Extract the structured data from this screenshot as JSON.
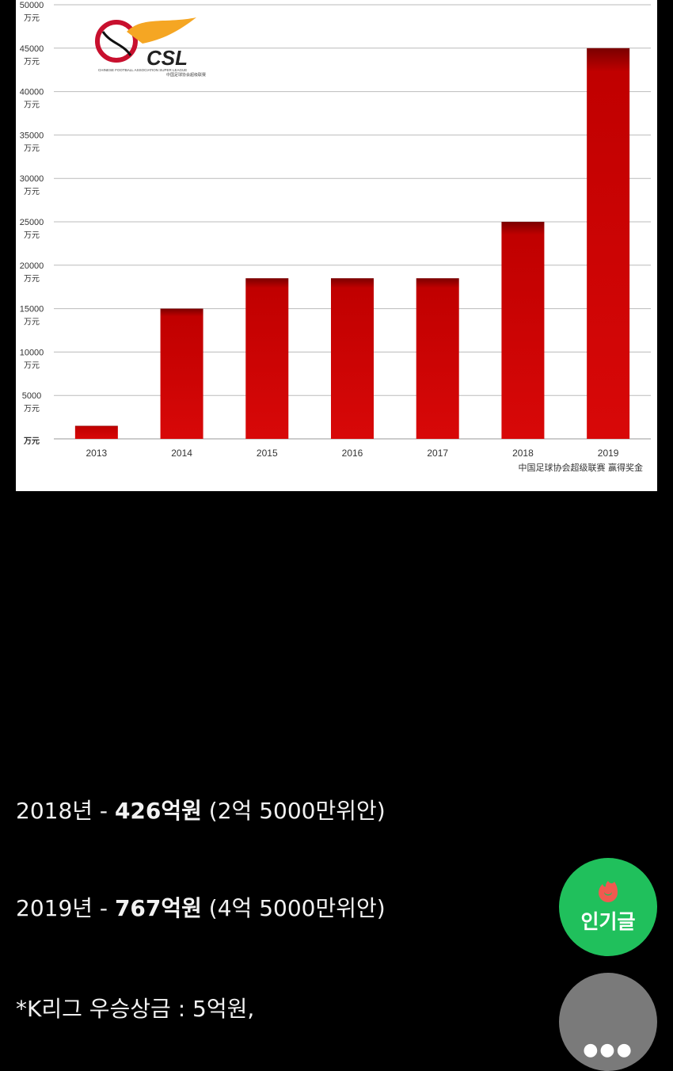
{
  "chart_data": {
    "type": "bar",
    "categories": [
      "2013",
      "2014",
      "2015",
      "2016",
      "2017",
      "2018",
      "2019"
    ],
    "values": [
      1500,
      15000,
      18500,
      18500,
      18500,
      25000,
      45000
    ],
    "ylim": [
      0,
      50000
    ],
    "yticks": [
      0,
      5000,
      10000,
      15000,
      20000,
      25000,
      30000,
      35000,
      40000,
      45000,
      50000
    ],
    "yunit": "万元",
    "caption": "中国足球协会超级联赛 赢得奖金",
    "grid": true,
    "bar_color": "#cc0000",
    "logo": {
      "text": "CSL",
      "subtitle": "CHINESE FOOTBALL ASSOCIATION SUPER LEAGUE",
      "subtitle_cn": "中国足球协会超级联赛"
    }
  },
  "article": {
    "lines": [
      {
        "prefix": "2018년 - ",
        "bold": "426억원",
        "suffix": " (2억 5000만위안)"
      },
      {
        "prefix": "2019년 - ",
        "bold": "767억원",
        "suffix": " (4억 5000만위안)"
      },
      {
        "prefix": "*K리그 우승상금 : 5억원,",
        "bold": "",
        "suffix": ""
      }
    ]
  },
  "fabs": {
    "popular_label": "인기글",
    "popular_icon": "fire-icon",
    "more_label": "●●●",
    "popular_color": "#20c05c",
    "more_color": "#7a7a7a"
  }
}
